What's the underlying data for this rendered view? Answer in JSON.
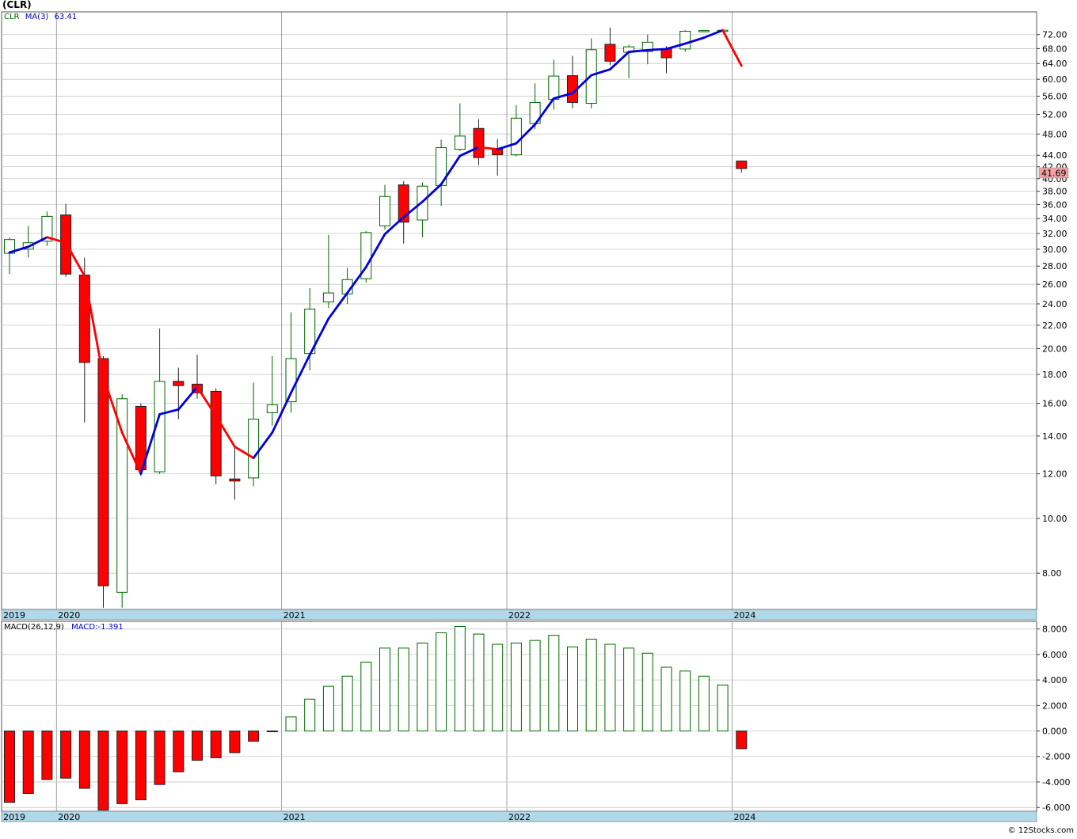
{
  "header": {
    "title": "(CLR)",
    "symbol": "CLR",
    "ma_label": "MA(3)",
    "ma_value": "63.41",
    "last_price": "41.69"
  },
  "macd_header": {
    "label": "MACD(26,12,9)",
    "value_label": "MACD:-1.391"
  },
  "footer": {
    "credit": "© 12Stocks.com"
  },
  "colors": {
    "up_fill": "#ffffff",
    "up_border": "#006400",
    "down_fill": "#ff0000",
    "ma_up": "#0000dd",
    "ma_down": "#ff0000",
    "axis_band": "#b0d8e8",
    "grid": "#c8c8c8",
    "price_badge": "#f5a0a0"
  },
  "chart_data": [
    {
      "type": "candlestick",
      "scale": "log",
      "ylim": [
        6.9,
        79
      ],
      "y_ticks": [
        "72.00",
        "68.00",
        "64.00",
        "60.00",
        "56.00",
        "52.00",
        "48.00",
        "44.00",
        "42.00",
        "40.00",
        "38.00",
        "36.00",
        "34.00",
        "32.00",
        "30.00",
        "28.00",
        "26.00",
        "24.00",
        "22.00",
        "20.00",
        "18.00",
        "16.00",
        "14.00",
        "12.00",
        "10.00",
        "8.00"
      ],
      "x_year_labels": [
        {
          "label": "2019",
          "index": -0.5
        },
        {
          "label": "2020",
          "index": 2.5
        },
        {
          "label": "2021",
          "index": 14.5
        },
        {
          "label": "2022",
          "index": 26.5
        },
        {
          "label": "2024",
          "index": 38.5
        }
      ],
      "candles": [
        {
          "o": 29.5,
          "h": 31.5,
          "l": 27.1,
          "c": 31.2
        },
        {
          "o": 30.0,
          "h": 33.0,
          "l": 29.0,
          "c": 30.8
        },
        {
          "o": 31.0,
          "h": 35.0,
          "l": 30.4,
          "c": 34.3
        },
        {
          "o": 34.5,
          "h": 36.1,
          "l": 26.8,
          "c": 27.1
        },
        {
          "o": 27.0,
          "h": 29.0,
          "l": 14.8,
          "c": 18.9
        },
        {
          "o": 19.2,
          "h": 19.4,
          "l": 6.95,
          "c": 7.6
        },
        {
          "o": 7.4,
          "h": 16.6,
          "l": 6.95,
          "c": 16.3
        },
        {
          "o": 15.8,
          "h": 16.0,
          "l": 11.9,
          "c": 12.2
        },
        {
          "o": 12.1,
          "h": 21.7,
          "l": 12.0,
          "c": 17.5
        },
        {
          "o": 17.5,
          "h": 18.5,
          "l": 15.0,
          "c": 17.2
        },
        {
          "o": 17.3,
          "h": 19.5,
          "l": 16.3,
          "c": 16.7
        },
        {
          "o": 16.8,
          "h": 17.0,
          "l": 11.5,
          "c": 11.9
        },
        {
          "o": 11.75,
          "h": 13.5,
          "l": 10.8,
          "c": 11.65
        },
        {
          "o": 11.8,
          "h": 17.4,
          "l": 11.4,
          "c": 15.0
        },
        {
          "o": 15.4,
          "h": 19.4,
          "l": 14.6,
          "c": 15.9
        },
        {
          "o": 16.1,
          "h": 23.2,
          "l": 15.4,
          "c": 19.2
        },
        {
          "o": 19.6,
          "h": 25.6,
          "l": 18.3,
          "c": 23.5
        },
        {
          "o": 24.2,
          "h": 31.8,
          "l": 23.6,
          "c": 25.1
        },
        {
          "o": 25.0,
          "h": 27.8,
          "l": 24.0,
          "c": 26.5
        },
        {
          "o": 26.6,
          "h": 32.3,
          "l": 26.2,
          "c": 32.1
        },
        {
          "o": 33.0,
          "h": 39.0,
          "l": 32.5,
          "c": 37.2
        },
        {
          "o": 39.0,
          "h": 39.6,
          "l": 30.7,
          "c": 33.5
        },
        {
          "o": 33.8,
          "h": 39.4,
          "l": 31.5,
          "c": 38.8
        },
        {
          "o": 38.9,
          "h": 46.9,
          "l": 35.8,
          "c": 45.4
        },
        {
          "o": 45.1,
          "h": 54.4,
          "l": 44.8,
          "c": 47.6
        },
        {
          "o": 49.1,
          "h": 51.0,
          "l": 42.3,
          "c": 43.6
        },
        {
          "o": 45.2,
          "h": 47.0,
          "l": 40.5,
          "c": 44.1
        },
        {
          "o": 44.1,
          "h": 54.0,
          "l": 43.8,
          "c": 51.2
        },
        {
          "o": 50.1,
          "h": 59.0,
          "l": 49.0,
          "c": 54.6
        },
        {
          "o": 55.3,
          "h": 65.0,
          "l": 53.0,
          "c": 60.8
        },
        {
          "o": 60.9,
          "h": 66.0,
          "l": 53.3,
          "c": 54.6
        },
        {
          "o": 54.4,
          "h": 70.9,
          "l": 53.3,
          "c": 67.7
        },
        {
          "o": 69.2,
          "h": 74.1,
          "l": 63.6,
          "c": 64.6
        },
        {
          "o": 67.0,
          "h": 69.1,
          "l": 60.3,
          "c": 68.5
        },
        {
          "o": 67.2,
          "h": 72.0,
          "l": 63.8,
          "c": 69.8
        },
        {
          "o": 67.9,
          "h": 68.7,
          "l": 61.5,
          "c": 65.5
        },
        {
          "o": 67.9,
          "h": 73.3,
          "l": 67.1,
          "c": 73.0
        },
        {
          "o": 73.2,
          "h": 73.4,
          "l": 73.0,
          "c": 73.2
        },
        {
          "o": 73.3,
          "h": 73.4,
          "l": 73.1,
          "c": 73.3
        },
        {
          "o": 43.0,
          "h": 43.0,
          "l": 41.0,
          "c": 41.69
        }
      ],
      "ma3": [
        29.6,
        30.3,
        31.5,
        30.8,
        26.9,
        17.8,
        14.2,
        12.0,
        15.3,
        15.6,
        17.1,
        15.2,
        13.4,
        12.8,
        14.2,
        16.7,
        19.5,
        22.6,
        25.1,
        27.9,
        31.9,
        34.2,
        36.4,
        39.1,
        43.9,
        45.5,
        45.1,
        46.2,
        49.9,
        55.5,
        56.7,
        61.0,
        62.5,
        67.1,
        67.6,
        67.9,
        69.4,
        71.1,
        73.3,
        63.41
      ],
      "last_value": 41.69
    },
    {
      "type": "bar",
      "title": "MACD(26,12,9)",
      "ylim": [
        -6.3,
        8.6
      ],
      "y_ticks": [
        "8.000",
        "6.000",
        "4.000",
        "2.000",
        "0.000",
        "-2.000",
        "-4.000",
        "-6.000"
      ],
      "values": [
        -5.6,
        -4.9,
        -3.8,
        -3.7,
        -4.5,
        -6.2,
        -5.7,
        -5.4,
        -4.2,
        -3.2,
        -2.3,
        -2.1,
        -1.7,
        -0.8,
        -0.05,
        1.1,
        2.5,
        3.5,
        4.3,
        5.4,
        6.5,
        6.5,
        6.9,
        7.7,
        8.2,
        7.6,
        6.8,
        6.9,
        7.1,
        7.5,
        6.6,
        7.2,
        6.8,
        6.5,
        6.1,
        5.0,
        4.7,
        4.3,
        3.6,
        -1.391
      ]
    }
  ]
}
